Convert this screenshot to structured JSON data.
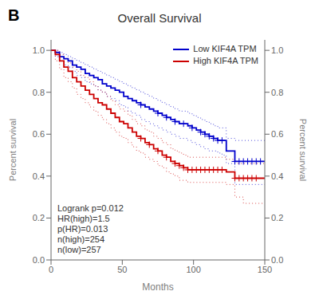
{
  "chart_data": {
    "type": "line",
    "title": "Overall Survival",
    "panel_label": "B",
    "xlabel": "Months",
    "ylabel": "Percent survival",
    "y2label": "Percent survival",
    "annotation": "Logrank p=0.012\nHR(high)=1.5\np(HR)=0.013\nn(high)=254\nn(low)=257",
    "xlim": [
      0,
      150
    ],
    "ylim": [
      0.0,
      1.05
    ],
    "y2lim": [
      0.0,
      1.05
    ],
    "xticks": [
      0,
      50,
      100,
      150
    ],
    "yticks": [
      {
        "value": 0.0,
        "label": "0.0"
      },
      0.2,
      0.4,
      0.6,
      0.8,
      {
        "value": 1.0,
        "label": "1.0"
      }
    ],
    "y2ticks": [
      {
        "value": 0.0,
        "label": "0.0"
      },
      0.2,
      0.4,
      0.6,
      0.8,
      {
        "value": 1.0,
        "label": "1.0"
      }
    ],
    "grid": false,
    "legend": "upper right",
    "series": [
      {
        "type": "line",
        "color": "#0000CC",
        "line_style": "dotted",
        "x": [
          0,
          3,
          6,
          9,
          12,
          15,
          18,
          21,
          24,
          27,
          30,
          33,
          36,
          39,
          42,
          45,
          48,
          51,
          54,
          57,
          60,
          63,
          66,
          69,
          72,
          75,
          78,
          81,
          84,
          87,
          90,
          93,
          96,
          99,
          102,
          105,
          108,
          111,
          114,
          117,
          120,
          123,
          126,
          129,
          132,
          135,
          138,
          141,
          144,
          147,
          150
        ],
        "values": [
          1.0,
          1.0,
          0.99,
          0.98,
          0.97,
          0.96,
          0.95,
          0.94,
          0.93,
          0.92,
          0.91,
          0.9,
          0.89,
          0.88,
          0.87,
          0.86,
          0.85,
          0.84,
          0.83,
          0.82,
          0.81,
          0.8,
          0.79,
          0.78,
          0.77,
          0.76,
          0.75,
          0.74,
          0.73,
          0.72,
          0.71,
          0.71,
          0.7,
          0.69,
          0.68,
          0.67,
          0.66,
          0.65,
          0.64,
          0.63,
          0.63,
          0.58,
          0.58,
          0.57,
          0.57,
          0.57,
          0.57,
          0.57,
          0.57,
          0.57,
          0.57
        ]
      },
      {
        "type": "line",
        "color": "#0000CC",
        "line_style": "dotted",
        "x": [
          0,
          3,
          6,
          9,
          12,
          15,
          18,
          21,
          24,
          27,
          30,
          33,
          36,
          39,
          42,
          45,
          48,
          51,
          54,
          57,
          60,
          63,
          66,
          69,
          72,
          75,
          78,
          81,
          84,
          87,
          90,
          93,
          96,
          99,
          102,
          105,
          108,
          111,
          114,
          117,
          120,
          123,
          126,
          129,
          132,
          135,
          138,
          141,
          144,
          147,
          150
        ],
        "values": [
          1.0,
          0.97,
          0.95,
          0.93,
          0.92,
          0.9,
          0.88,
          0.87,
          0.85,
          0.84,
          0.83,
          0.81,
          0.8,
          0.78,
          0.77,
          0.76,
          0.74,
          0.73,
          0.71,
          0.7,
          0.69,
          0.67,
          0.66,
          0.65,
          0.64,
          0.63,
          0.62,
          0.61,
          0.6,
          0.59,
          0.58,
          0.58,
          0.57,
          0.56,
          0.55,
          0.54,
          0.53,
          0.52,
          0.52,
          0.51,
          0.5,
          0.46,
          0.46,
          0.36,
          0.36,
          0.36,
          0.36,
          0.36,
          0.36,
          0.36,
          0.36
        ]
      },
      {
        "type": "line",
        "color": "#CC0000",
        "line_style": "dotted",
        "x": [
          0,
          3,
          6,
          9,
          12,
          15,
          18,
          21,
          24,
          27,
          30,
          33,
          36,
          39,
          42,
          45,
          48,
          51,
          54,
          57,
          60,
          63,
          66,
          69,
          72,
          75,
          78,
          81,
          84,
          87,
          90,
          93,
          96,
          99,
          102,
          105,
          108,
          111,
          114,
          117,
          120,
          123,
          126,
          129,
          132,
          135,
          138,
          141,
          144,
          147,
          150
        ],
        "values": [
          1.0,
          1.0,
          0.98,
          0.96,
          0.94,
          0.92,
          0.9,
          0.88,
          0.87,
          0.85,
          0.83,
          0.81,
          0.8,
          0.78,
          0.76,
          0.74,
          0.72,
          0.71,
          0.69,
          0.67,
          0.65,
          0.64,
          0.62,
          0.61,
          0.59,
          0.58,
          0.56,
          0.55,
          0.53,
          0.52,
          0.51,
          0.5,
          0.49,
          0.49,
          0.49,
          0.49,
          0.49,
          0.49,
          0.49,
          0.49,
          0.49,
          0.48,
          0.48,
          0.46,
          0.46,
          0.46,
          0.46,
          0.46,
          0.46,
          0.46,
          0.46
        ]
      },
      {
        "type": "line",
        "color": "#CC0000",
        "line_style": "dotted",
        "x": [
          0,
          3,
          6,
          9,
          12,
          15,
          18,
          21,
          24,
          27,
          30,
          33,
          36,
          39,
          42,
          45,
          48,
          51,
          54,
          57,
          60,
          63,
          66,
          69,
          72,
          75,
          78,
          81,
          84,
          87,
          90,
          93,
          96,
          99,
          102,
          105,
          108,
          111,
          114,
          117,
          120,
          123,
          126,
          129,
          132,
          135,
          138,
          141,
          144,
          147,
          150
        ],
        "values": [
          1.0,
          0.95,
          0.91,
          0.87,
          0.85,
          0.82,
          0.79,
          0.77,
          0.75,
          0.73,
          0.71,
          0.69,
          0.67,
          0.65,
          0.63,
          0.61,
          0.59,
          0.58,
          0.56,
          0.54,
          0.52,
          0.51,
          0.49,
          0.48,
          0.47,
          0.45,
          0.44,
          0.42,
          0.41,
          0.4,
          0.38,
          0.38,
          0.37,
          0.37,
          0.37,
          0.37,
          0.37,
          0.37,
          0.37,
          0.37,
          0.37,
          0.36,
          0.36,
          0.3,
          0.3,
          0.27,
          0.27,
          0.27,
          0.27,
          0.27,
          0.27
        ]
      },
      {
        "name": "Low KIF4A TPM",
        "type": "line",
        "color": "#0000CC",
        "line_style": "solid",
        "x": [
          0,
          3,
          6,
          9,
          12,
          15,
          18,
          21,
          24,
          27,
          30,
          33,
          36,
          39,
          42,
          45,
          48,
          51,
          54,
          57,
          60,
          63,
          66,
          69,
          72,
          75,
          78,
          81,
          84,
          87,
          90,
          93,
          96,
          99,
          102,
          105,
          108,
          111,
          114,
          117,
          120,
          123,
          126,
          129,
          132,
          135,
          138,
          141,
          144,
          147,
          150
        ],
        "values": [
          1.0,
          0.99,
          0.97,
          0.96,
          0.95,
          0.93,
          0.92,
          0.91,
          0.89,
          0.88,
          0.87,
          0.86,
          0.84,
          0.83,
          0.82,
          0.81,
          0.8,
          0.78,
          0.77,
          0.76,
          0.75,
          0.74,
          0.73,
          0.72,
          0.71,
          0.7,
          0.69,
          0.68,
          0.67,
          0.66,
          0.65,
          0.65,
          0.64,
          0.63,
          0.62,
          0.61,
          0.6,
          0.59,
          0.58,
          0.57,
          0.57,
          0.52,
          0.52,
          0.47,
          0.47,
          0.47,
          0.47,
          0.47,
          0.47,
          0.47,
          0.47
        ]
      },
      {
        "name": "High KIF4A TPM",
        "type": "line",
        "color": "#CC0000",
        "line_style": "solid",
        "x": [
          0,
          3,
          6,
          9,
          12,
          15,
          18,
          21,
          24,
          27,
          30,
          33,
          36,
          39,
          42,
          45,
          48,
          51,
          54,
          57,
          60,
          63,
          66,
          69,
          72,
          75,
          78,
          81,
          84,
          87,
          90,
          93,
          96,
          99,
          102,
          105,
          108,
          111,
          114,
          117,
          120,
          123,
          126,
          129,
          132,
          135,
          138,
          141,
          144,
          147,
          150
        ],
        "values": [
          1.0,
          0.98,
          0.95,
          0.92,
          0.9,
          0.87,
          0.85,
          0.83,
          0.81,
          0.79,
          0.77,
          0.75,
          0.74,
          0.72,
          0.7,
          0.68,
          0.66,
          0.65,
          0.63,
          0.61,
          0.59,
          0.58,
          0.56,
          0.55,
          0.53,
          0.52,
          0.5,
          0.49,
          0.47,
          0.46,
          0.45,
          0.44,
          0.43,
          0.43,
          0.43,
          0.43,
          0.43,
          0.43,
          0.43,
          0.43,
          0.43,
          0.42,
          0.42,
          0.39,
          0.39,
          0.39,
          0.39,
          0.39,
          0.39,
          0.39,
          0.39
        ]
      },
      {
        "type": "scatter",
        "marker": "+",
        "color": "#0000CC",
        "x": [
          63,
          75,
          81,
          87,
          93,
          99,
          105,
          108,
          111,
          114,
          117,
          120,
          129,
          132,
          135,
          138,
          141,
          144,
          147
        ],
        "values": [
          0.74,
          0.7,
          0.68,
          0.66,
          0.65,
          0.63,
          0.61,
          0.6,
          0.59,
          0.58,
          0.57,
          0.57,
          0.47,
          0.47,
          0.47,
          0.47,
          0.47,
          0.47,
          0.47
        ]
      },
      {
        "type": "scatter",
        "marker": "+",
        "color": "#CC0000",
        "x": [
          63,
          69,
          75,
          81,
          87,
          90,
          93,
          96,
          99,
          102,
          105,
          108,
          111,
          114,
          117,
          120,
          129,
          132,
          135,
          138,
          141,
          144
        ],
        "values": [
          0.58,
          0.55,
          0.52,
          0.49,
          0.46,
          0.45,
          0.44,
          0.43,
          0.43,
          0.43,
          0.43,
          0.43,
          0.43,
          0.43,
          0.43,
          0.43,
          0.39,
          0.39,
          0.39,
          0.39,
          0.39,
          0.39
        ]
      }
    ]
  }
}
